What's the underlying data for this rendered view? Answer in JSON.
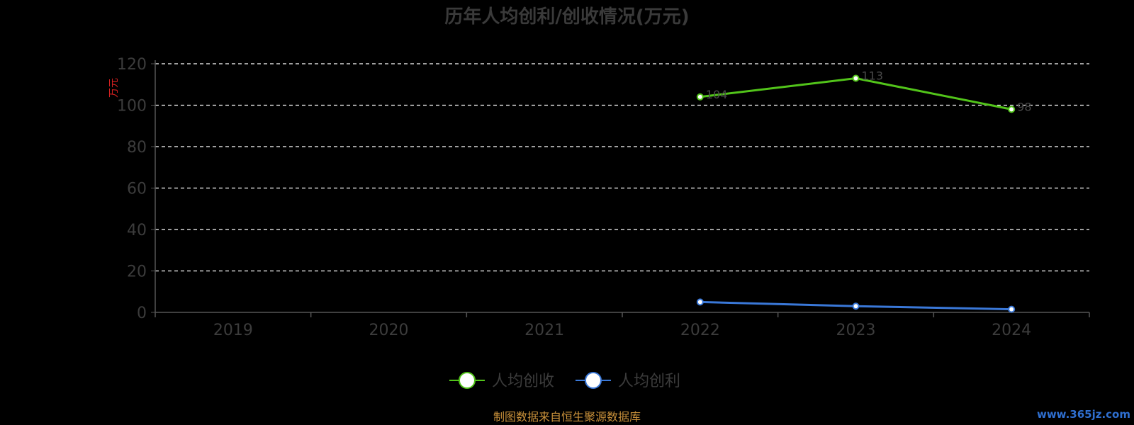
{
  "chart_data": {
    "type": "line",
    "title": "历年人均创利/创收情况(万元)",
    "ylabel": "万元",
    "xlabel": "",
    "categories": [
      "2019",
      "2020",
      "2021",
      "2022",
      "2023",
      "2024"
    ],
    "ylim": [
      0,
      120
    ],
    "yticks": [
      0,
      20,
      40,
      60,
      80,
      100,
      120
    ],
    "grid": true,
    "legend_position": "bottom",
    "series": [
      {
        "name": "人均创收",
        "color": "#52c41a",
        "values": [
          null,
          null,
          null,
          104.0,
          113.0,
          98.0
        ]
      },
      {
        "name": "人均创利",
        "color": "#3a78d8",
        "values": [
          null,
          null,
          null,
          5.0,
          3.0,
          1.5
        ]
      }
    ]
  },
  "footer": {
    "source": "制图数据来自恒生聚源数据库",
    "watermark": "www.365jz.com"
  }
}
